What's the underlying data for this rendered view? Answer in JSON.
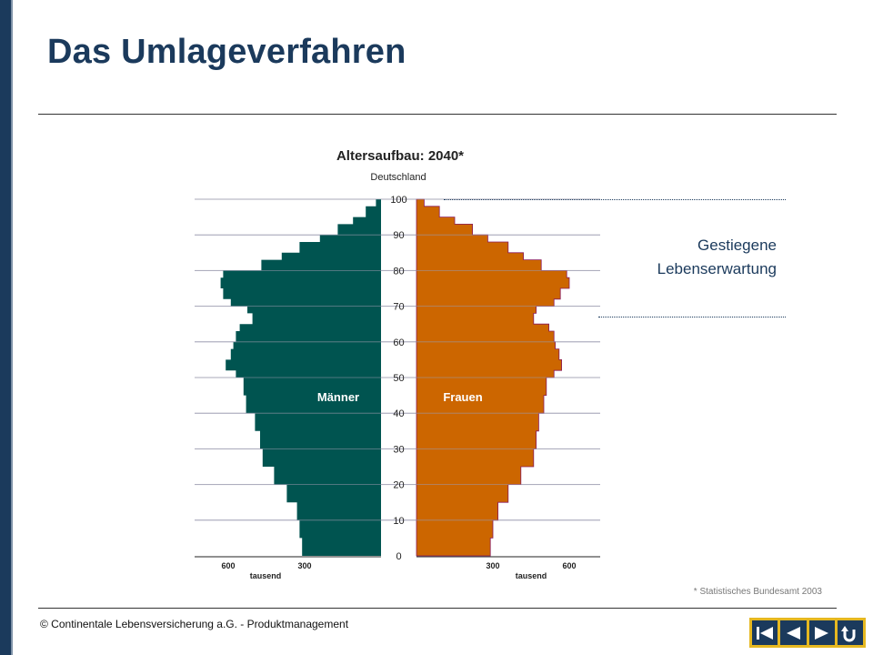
{
  "page": {
    "title": "Das Umlageverfahren",
    "footer": "© Continentale Lebensversicherung a.G. - Produktmanagement",
    "source_note": "* Statistisches Bundesamt 2003",
    "annotation": [
      "Gestiegene",
      "Lebenserwartung"
    ],
    "colors": {
      "accent": "#1b3a5c",
      "men": "#005450",
      "women": "#cc6600",
      "nav_bg": "#e6b820"
    }
  },
  "navigation": {
    "icons": [
      "first-slide-icon",
      "previous-slide-icon",
      "next-slide-icon",
      "return-icon"
    ]
  },
  "chart_data": {
    "type": "bar",
    "orientation": "horizontal-population-pyramid",
    "title": "Altersaufbau: 2040*",
    "subtitle": "Deutschland",
    "xlabel": "tausend",
    "y_ticks": [
      0,
      10,
      20,
      30,
      40,
      50,
      60,
      70,
      80,
      90,
      100
    ],
    "x_ticks_left": [
      "600",
      "300"
    ],
    "x_ticks_right": [
      "300",
      "600"
    ],
    "x_tick_values": [
      600,
      300
    ],
    "xlim": [
      0,
      700
    ],
    "ylim": [
      0,
      100
    ],
    "ages": [
      0,
      5,
      10,
      15,
      20,
      25,
      30,
      35,
      40,
      45,
      50,
      52,
      55,
      58,
      60,
      63,
      65,
      68,
      70,
      72,
      75,
      78,
      80,
      83,
      85,
      88,
      90,
      93,
      95,
      98,
      100
    ],
    "series": [
      {
        "name": "Männer",
        "values": [
          310,
          320,
          330,
          370,
          420,
          465,
          475,
          495,
          530,
          540,
          570,
          610,
          590,
          580,
          570,
          555,
          505,
          525,
          590,
          620,
          630,
          620,
          470,
          390,
          320,
          240,
          170,
          110,
          60,
          20,
          5
        ]
      },
      {
        "name": "Frauen",
        "values": [
          290,
          300,
          320,
          360,
          410,
          460,
          470,
          480,
          500,
          510,
          540,
          570,
          560,
          545,
          540,
          520,
          460,
          470,
          540,
          565,
          600,
          590,
          490,
          420,
          360,
          280,
          220,
          150,
          90,
          30,
          10
        ]
      }
    ]
  }
}
